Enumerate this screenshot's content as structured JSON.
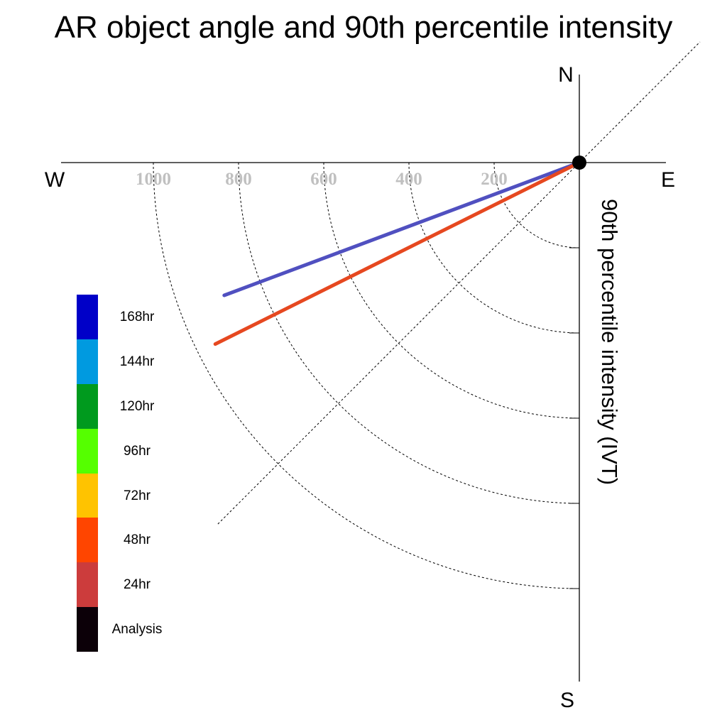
{
  "chart_data": {
    "type": "polar-radial",
    "title": "AR object angle and 90th percentile intensity",
    "axis_label": "90th percentile intensity (IVT)",
    "compass": {
      "north": "N",
      "south": "S",
      "east": "E",
      "west": "W"
    },
    "radial_ticks": [
      200,
      400,
      600,
      800,
      1000
    ],
    "radial_max": 1200,
    "series": [
      {
        "name": "168hr",
        "color": "#5050c0",
        "angle_deg": 20.5,
        "intensity": 890
      },
      {
        "name": "48hr",
        "color": "#e64820",
        "angle_deg": 26.5,
        "intensity": 955
      }
    ],
    "legend": [
      {
        "label": "168hr",
        "color": "#0000c8"
      },
      {
        "label": "144hr",
        "color": "#009ae0"
      },
      {
        "label": "120hr",
        "color": "#009a1e"
      },
      {
        "label": "96hr",
        "color": "#55ff00"
      },
      {
        "label": "72hr",
        "color": "#ffc300"
      },
      {
        "label": "48hr",
        "color": "#ff4500"
      },
      {
        "label": "24hr",
        "color": "#cc3c3c"
      },
      {
        "label": "Analysis",
        "color": "#0c0008"
      }
    ]
  }
}
